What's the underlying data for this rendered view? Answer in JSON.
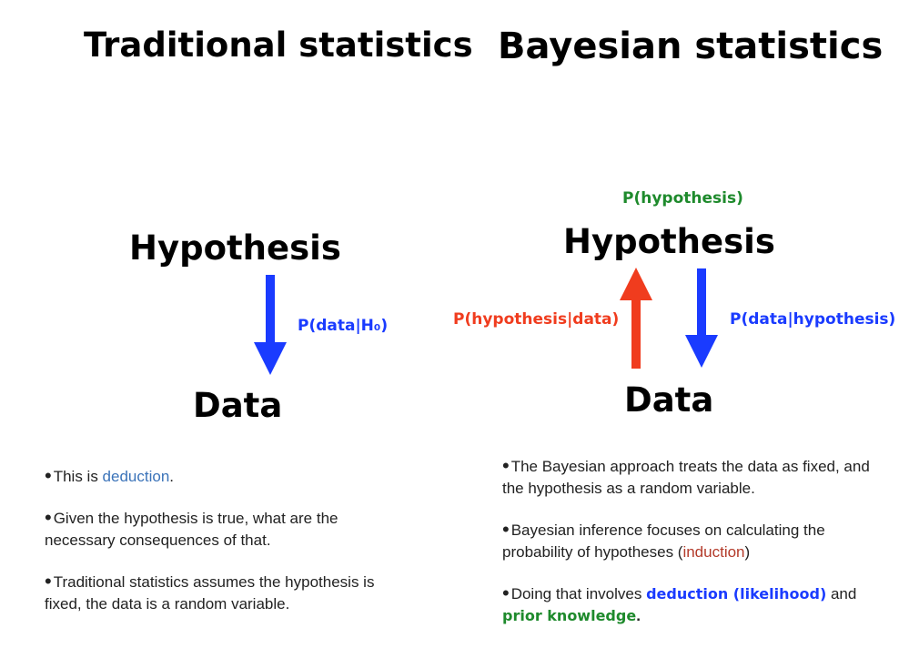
{
  "left": {
    "title": "Traditional statistics",
    "hypothesis": "Hypothesis",
    "data": "Data",
    "arrow_label": "P(data|H₀)",
    "bullets": [
      {
        "pre": "This is ",
        "link": "deduction",
        "post": "."
      },
      {
        "text": "Given the hypothesis is true, what are the necessary consequences of that."
      },
      {
        "text": "Traditional statistics assumes the hypothesis is fixed, the data is a random variable."
      }
    ]
  },
  "right": {
    "title": "Bayesian statistics",
    "prior_label": "P(hypothesis)",
    "hypothesis": "Hypothesis",
    "data": "Data",
    "up_arrow_label": "P(hypothesis|data)",
    "down_arrow_label": "P(data|hypothesis)",
    "bullets": [
      {
        "text": "The Bayesian approach treats the data as fixed, and the hypothesis as a random variable."
      },
      {
        "pre": "Bayesian inference focuses on calculating the probability of hypotheses (",
        "link": "induction",
        "post": ")"
      },
      {
        "pre": "Doing that involves ",
        "em1": "deduction (likelihood)",
        "mid": " and ",
        "em2": "prior knowledge",
        "post": "."
      }
    ]
  },
  "colors": {
    "down_arrow": "#1a3bff",
    "up_arrow": "#f03c1e",
    "prior": "#1e8a2c"
  }
}
